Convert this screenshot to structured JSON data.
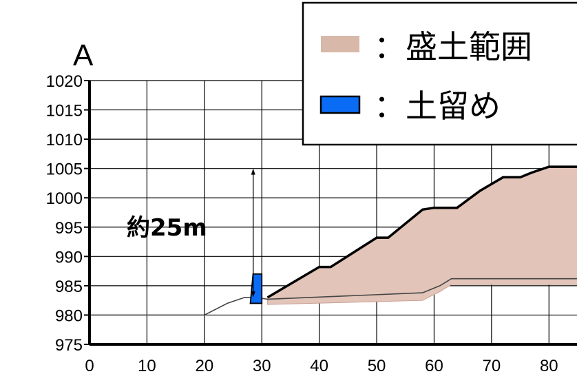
{
  "chart_data": {
    "type": "area",
    "section_label": "A",
    "xlim": [
      0,
      85
    ],
    "ylim": [
      975,
      1020
    ],
    "x_ticks": [
      0,
      10,
      20,
      30,
      40,
      50,
      60,
      70,
      80
    ],
    "y_ticks": [
      1020,
      1015,
      1010,
      1005,
      1000,
      995,
      990,
      985,
      980,
      975
    ],
    "grid": true,
    "ground_line": {
      "x": [
        0,
        20,
        24,
        27,
        29,
        31,
        58,
        61,
        63,
        85
      ],
      "y": [
        980,
        980,
        982,
        983,
        983,
        982.7,
        983.8,
        985,
        986.2,
        986.2
      ]
    },
    "fill_surface": {
      "x": [
        31,
        40,
        42,
        50,
        52,
        58,
        60,
        62,
        64,
        68,
        72,
        75,
        77,
        80,
        85
      ],
      "y": [
        983,
        988.2,
        988.2,
        993.2,
        993.2,
        998,
        998.3,
        998.3,
        998.3,
        1001.2,
        1003.5,
        1003.5,
        1004.3,
        1005.3,
        1005.3
      ]
    },
    "fill_base": {
      "x": [
        31,
        58,
        61,
        63,
        85
      ],
      "y": [
        981.8,
        982.5,
        984,
        985.2,
        985.2
      ]
    },
    "retaining_wall": {
      "x": [
        28,
        30
      ],
      "y": [
        982,
        987
      ]
    },
    "dimension": {
      "label": "約25m",
      "x": 28.5,
      "y": [
        983,
        1005
      ]
    },
    "legend": {
      "position": "top-right",
      "items": [
        {
          "label": "：盛土範囲",
          "color": "#d8b8a8",
          "swatch": "fill"
        },
        {
          "label": "：土留め",
          "color": "#0a6cf5",
          "swatch": "wall"
        }
      ]
    },
    "colors": {
      "fill_area": "#e2c4b9",
      "fill_outline": "#c9a092",
      "wall": "#0a6cf5",
      "axis": "#000000",
      "grid": "#000000"
    }
  }
}
